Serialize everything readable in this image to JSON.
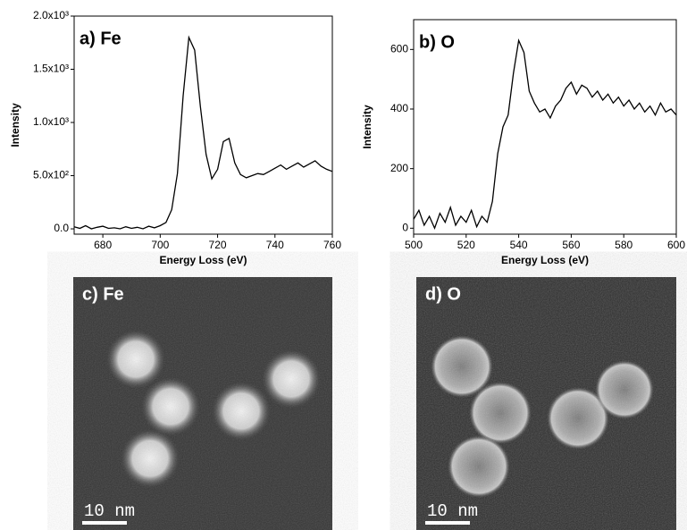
{
  "chart_data": [
    {
      "type": "line",
      "title": "a) Fe",
      "xlabel": "Energy Loss (eV)",
      "ylabel": "Intensity",
      "color": "#000000",
      "x": [
        670,
        672,
        674,
        676,
        678,
        680,
        682,
        684,
        686,
        688,
        690,
        692,
        694,
        696,
        698,
        700,
        702,
        704,
        706,
        708,
        710,
        712,
        714,
        716,
        718,
        720,
        722,
        724,
        726,
        728,
        730,
        732,
        734,
        736,
        738,
        740,
        742,
        744,
        746,
        748,
        750,
        752,
        754,
        756,
        758,
        760
      ],
      "values": [
        20,
        5,
        30,
        0,
        15,
        25,
        5,
        10,
        0,
        20,
        5,
        15,
        0,
        25,
        10,
        30,
        60,
        180,
        520,
        1250,
        1800,
        1680,
        1150,
        700,
        470,
        560,
        820,
        850,
        620,
        510,
        480,
        500,
        520,
        510,
        540,
        570,
        600,
        560,
        590,
        620,
        580,
        610,
        640,
        590,
        560,
        540
      ],
      "xlim": [
        670,
        760
      ],
      "xticks": [
        680,
        700,
        720,
        740,
        760
      ],
      "ylim": [
        -50,
        2000
      ],
      "yticks": [
        {
          "value": 0,
          "label": "0.0"
        },
        {
          "value": 500,
          "label": "5.0x10²"
        },
        {
          "value": 1000,
          "label": "1.0x10³"
        },
        {
          "value": 1500,
          "label": "1.5x10³"
        },
        {
          "value": 2000,
          "label": "2.0x10³"
        }
      ]
    },
    {
      "type": "line",
      "title": "b) O",
      "xlabel": "Energy Loss (eV)",
      "ylabel": "Intensity",
      "color": "#000000",
      "x": [
        500,
        502,
        504,
        506,
        508,
        510,
        512,
        514,
        516,
        518,
        520,
        522,
        524,
        526,
        528,
        530,
        532,
        534,
        536,
        538,
        540,
        542,
        544,
        546,
        548,
        550,
        552,
        554,
        556,
        558,
        560,
        562,
        564,
        566,
        568,
        570,
        572,
        574,
        576,
        578,
        580,
        582,
        584,
        586,
        588,
        590,
        592,
        594,
        596,
        598,
        600
      ],
      "values": [
        30,
        60,
        10,
        40,
        0,
        50,
        20,
        70,
        10,
        40,
        20,
        60,
        5,
        40,
        20,
        90,
        250,
        340,
        380,
        520,
        630,
        590,
        460,
        420,
        390,
        400,
        370,
        410,
        430,
        470,
        490,
        450,
        480,
        470,
        440,
        460,
        430,
        450,
        420,
        440,
        410,
        430,
        400,
        420,
        390,
        410,
        380,
        420,
        390,
        400,
        380
      ],
      "xlim": [
        500,
        600
      ],
      "xticks": [
        500,
        520,
        540,
        560,
        580,
        600
      ],
      "ylim": [
        -20,
        700
      ],
      "yticks": [
        0,
        200,
        400,
        600
      ]
    }
  ],
  "images": [
    {
      "label": "c) Fe",
      "scale_bar": "10 nm"
    },
    {
      "label": "d) O",
      "scale_bar": "10 nm"
    }
  ]
}
